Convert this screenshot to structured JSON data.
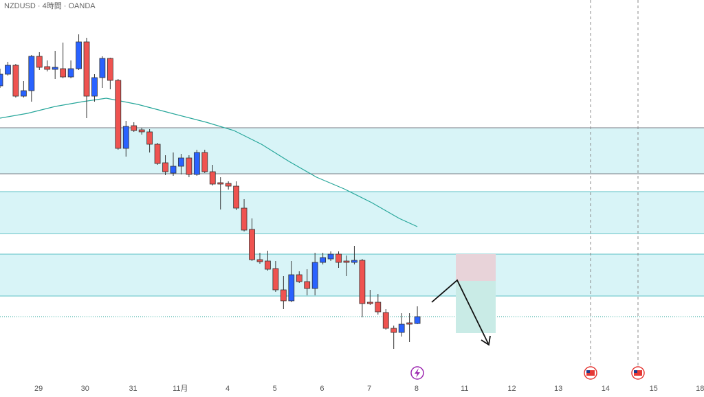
{
  "chart_data": {
    "type": "candlestick",
    "title": "NZDUSD · 4時間 · OANDA",
    "xlim": [
      0,
      89.4
    ],
    "ylim": [
      0,
      578
    ],
    "xticks": [
      {
        "value": 4.9,
        "label": "29"
      },
      {
        "value": 10.8,
        "label": "30"
      },
      {
        "value": 16.9,
        "label": "31"
      },
      {
        "value": 22.9,
        "label": "11月"
      },
      {
        "value": 28.9,
        "label": "4"
      },
      {
        "value": 34.9,
        "label": "5"
      },
      {
        "value": 40.9,
        "label": "6"
      },
      {
        "value": 46.9,
        "label": "7"
      },
      {
        "value": 52.9,
        "label": "8"
      },
      {
        "value": 59,
        "label": "11"
      },
      {
        "value": 65,
        "label": "12"
      },
      {
        "value": 70.9,
        "label": "13"
      },
      {
        "value": 76.9,
        "label": "14"
      },
      {
        "value": 83,
        "label": "15"
      },
      {
        "value": 88.9,
        "label": "18"
      }
    ],
    "up_color": "#2962ff",
    "down_color": "#ef5350",
    "open": [
      453,
      470,
      483,
      438,
      446,
      496,
      481,
      477,
      478,
      466,
      478,
      517,
      438,
      465,
      493,
      461,
      362,
      395,
      389,
      386,
      368,
      341,
      326,
      336,
      348,
      324,
      356,
      328,
      312,
      311,
      307,
      275,
      244,
      200,
      198,
      187,
      156,
      140,
      178,
      168,
      158,
      196,
      201,
      208,
      198,
      196,
      199,
      138,
      138,
      123,
      100,
      94,
      108,
      107
    ],
    "high": [
      478,
      488,
      485,
      460,
      498,
      502,
      490,
      504,
      516,
      490,
      528,
      523,
      470,
      496,
      494,
      463,
      402,
      400,
      392,
      390,
      370,
      352,
      356,
      354,
      352,
      360,
      360,
      338,
      320,
      314,
      314,
      288,
      260,
      210,
      213,
      198,
      176,
      198,
      183,
      186,
      210,
      210,
      212,
      212,
      206,
      220,
      201,
      156,
      150,
      128,
      104,
      122,
      122,
      132
    ],
    "low": [
      450,
      468,
      436,
      436,
      430,
      476,
      474,
      463,
      464,
      464,
      476,
      406,
      430,
      450,
      448,
      360,
      350,
      386,
      382,
      356,
      338,
      323,
      322,
      324,
      320,
      322,
      326,
      308,
      273,
      302,
      272,
      241,
      198,
      194,
      184,
      153,
      128,
      138,
      166,
      148,
      148,
      193,
      198,
      188,
      176,
      193,
      116,
      134,
      120,
      98,
      70,
      88,
      80,
      106
    ],
    "close": [
      470,
      483,
      438,
      446,
      496,
      480,
      477,
      480,
      466,
      478,
      517,
      438,
      465,
      493,
      461,
      362,
      394,
      388,
      386,
      368,
      340,
      328,
      336,
      348,
      324,
      356,
      328,
      310,
      310,
      307,
      275,
      243,
      200,
      197,
      186,
      156,
      140,
      178,
      168,
      158,
      196,
      203,
      208,
      196,
      196,
      199,
      136,
      136,
      124,
      100,
      94,
      106,
      106,
      117
    ],
    "moving_average": {
      "color": "#26a69a",
      "x": [
        0,
        3.5,
        7,
        10.5,
        13.5,
        17.5,
        21.8,
        26.2,
        29.7,
        33.2,
        36.7,
        40.2,
        43.7,
        47.2,
        50.7,
        53
      ],
      "values": [
        406,
        413,
        423,
        430,
        435,
        426,
        413,
        400,
        388,
        368,
        343,
        320,
        303,
        283,
        260,
        248
      ]
    },
    "zones": [
      {
        "top": 392,
        "bottom": 325,
        "fill": "#d8f4f7",
        "border": "#787b86"
      },
      {
        "top": 299,
        "bottom": 238,
        "fill": "#d8f4f7",
        "border": "#5cc0c6"
      },
      {
        "top": 208,
        "bottom": 147,
        "fill": "#d8f4f7",
        "border": "#5cc0c6"
      }
    ],
    "last_price": 117
  }
}
